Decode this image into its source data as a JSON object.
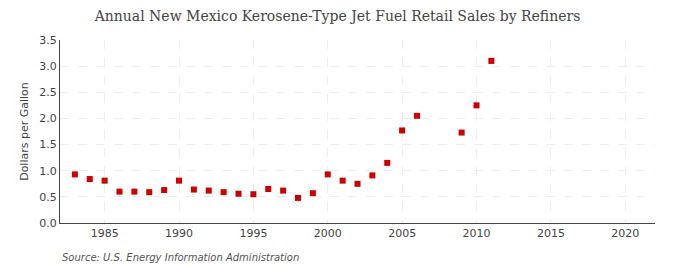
{
  "chart_data": {
    "type": "scatter",
    "title": "Annual New Mexico Kerosene-Type Jet Fuel Retail Sales by Refiners",
    "ylabel": "Dollars per Gallon",
    "source": "Source: U.S. Energy Information Administration",
    "x": [
      1983,
      1984,
      1985,
      1986,
      1987,
      1988,
      1989,
      1990,
      1991,
      1992,
      1993,
      1994,
      1995,
      1996,
      1997,
      1998,
      1999,
      2000,
      2001,
      2002,
      2003,
      2004,
      2005,
      2006,
      2009,
      2010,
      2011
    ],
    "values": [
      0.93,
      0.84,
      0.81,
      0.6,
      0.6,
      0.59,
      0.63,
      0.81,
      0.64,
      0.62,
      0.59,
      0.56,
      0.55,
      0.65,
      0.62,
      0.48,
      0.57,
      0.93,
      0.81,
      0.75,
      0.91,
      1.15,
      1.77,
      2.05,
      1.73,
      2.25,
      3.1
    ],
    "color": "#cc0000",
    "marker": "square",
    "xlim": [
      1982,
      2022
    ],
    "xticks": [
      1985,
      1990,
      1995,
      2000,
      2005,
      2010,
      2015,
      2020
    ],
    "ylim": [
      0.0,
      3.5
    ],
    "yticks": [
      {
        "value": 0.0,
        "label": "0.0"
      },
      0.5,
      {
        "value": 1.0,
        "label": "1.0"
      },
      1.5,
      {
        "value": 2.0,
        "label": "2.0"
      },
      2.5,
      {
        "value": 3.0,
        "label": "3.0"
      },
      3.5
    ],
    "grid": true
  }
}
